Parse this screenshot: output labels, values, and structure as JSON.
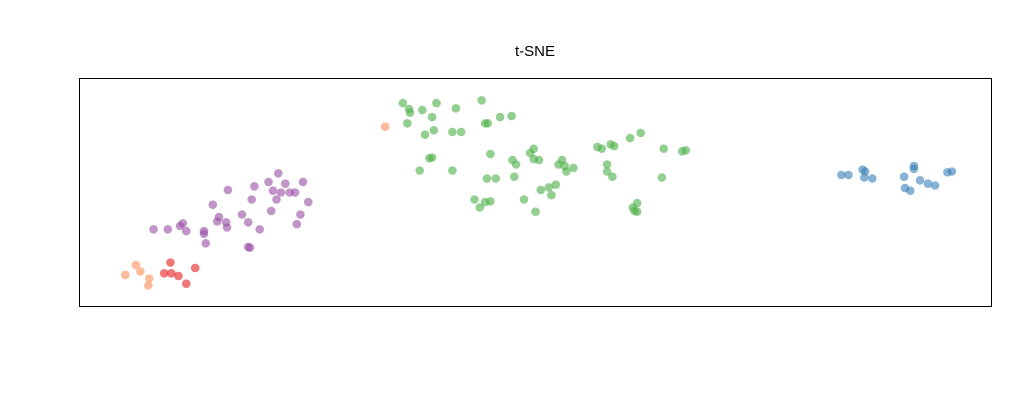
{
  "chart_data": {
    "type": "scatter",
    "title": "t-SNE",
    "xlabel": "",
    "ylabel": "",
    "axes_visible": false,
    "grid": false,
    "legend": "none",
    "xlim": [
      0,
      100
    ],
    "ylim": [
      0,
      100
    ],
    "point_opacity": 0.6,
    "series": [
      {
        "color": "#fc8d59",
        "points": [
          [
            3.6,
            8.8
          ],
          [
            4.8,
            13.8
          ],
          [
            5.3,
            10.5
          ],
          [
            6.3,
            7.0
          ],
          [
            6.2,
            3.5
          ],
          [
            33.0,
            82.9
          ]
        ]
      },
      {
        "color": "#e41a1c",
        "points": [
          [
            8.7,
            15.0
          ],
          [
            8.0,
            9.6
          ],
          [
            8.8,
            9.6
          ],
          [
            9.6,
            8.3
          ],
          [
            10.5,
            4.4
          ],
          [
            11.5,
            12.3
          ]
        ]
      },
      {
        "color": "#984ea3",
        "points": [
          [
            6.8,
            31.6
          ],
          [
            8.4,
            31.6
          ],
          [
            9.8,
            33.3
          ],
          [
            10.1,
            34.6
          ],
          [
            10.5,
            30.7
          ],
          [
            12.5,
            29.4
          ],
          [
            12.5,
            30.7
          ],
          [
            12.7,
            24.6
          ],
          [
            13.5,
            43.9
          ],
          [
            14.0,
            35.5
          ],
          [
            14.2,
            37.7
          ],
          [
            15.0,
            35.1
          ],
          [
            15.1,
            32.5
          ],
          [
            15.2,
            51.3
          ],
          [
            16.8,
            39.0
          ],
          [
            17.5,
            35.1
          ],
          [
            17.5,
            22.8
          ],
          [
            17.7,
            22.4
          ],
          [
            17.9,
            46.5
          ],
          [
            18.2,
            53.1
          ],
          [
            18.8,
            31.6
          ],
          [
            19.8,
            55.3
          ],
          [
            20.1,
            40.8
          ],
          [
            20.3,
            50.9
          ],
          [
            20.9,
            59.6
          ],
          [
            20.7,
            46.5
          ],
          [
            21.2,
            50.0
          ],
          [
            21.7,
            54.4
          ],
          [
            22.2,
            50.0
          ],
          [
            22.8,
            50.0
          ],
          [
            23.0,
            34.2
          ],
          [
            23.4,
            39.0
          ],
          [
            23.7,
            55.3
          ],
          [
            24.3,
            45.2
          ]
        ]
      },
      {
        "color": "#4daf4a",
        "points": [
          [
            35.0,
            94.7
          ],
          [
            35.7,
            91.7
          ],
          [
            35.8,
            89.9
          ],
          [
            35.5,
            84.6
          ],
          [
            37.2,
            91.2
          ],
          [
            38.8,
            94.7
          ],
          [
            38.3,
            87.7
          ],
          [
            38.5,
            81.1
          ],
          [
            37.5,
            78.9
          ],
          [
            40.6,
            80.3
          ],
          [
            41.0,
            92.1
          ],
          [
            41.6,
            80.3
          ],
          [
            43.9,
            96.1
          ],
          [
            44.3,
            84.6
          ],
          [
            44.6,
            84.6
          ],
          [
            46.0,
            87.7
          ],
          [
            47.3,
            88.2
          ],
          [
            36.9,
            61.0
          ],
          [
            38.0,
            67.1
          ],
          [
            38.3,
            67.5
          ],
          [
            40.6,
            61.0
          ],
          [
            43.7,
            42.5
          ],
          [
            43.1,
            46.5
          ],
          [
            44.3,
            45.2
          ],
          [
            44.9,
            45.6
          ],
          [
            44.5,
            57.0
          ],
          [
            45.5,
            57.0
          ],
          [
            44.9,
            69.3
          ],
          [
            47.6,
            57.9
          ],
          [
            47.8,
            64.0
          ],
          [
            47.4,
            66.2
          ],
          [
            48.7,
            46.5
          ],
          [
            49.4,
            69.7
          ],
          [
            49.8,
            71.9
          ],
          [
            49.8,
            66.7
          ],
          [
            50.4,
            66.2
          ],
          [
            50.6,
            51.3
          ],
          [
            50.0,
            40.4
          ],
          [
            51.5,
            52.6
          ],
          [
            52.3,
            53.9
          ],
          [
            51.8,
            48.7
          ],
          [
            52.6,
            64.0
          ],
          [
            53.3,
            63.2
          ],
          [
            53.0,
            66.2
          ],
          [
            53.5,
            60.5
          ],
          [
            54.3,
            62.3
          ],
          [
            57.0,
            72.8
          ],
          [
            57.5,
            71.9
          ],
          [
            58.1,
            64.0
          ],
          [
            58.1,
            60.5
          ],
          [
            58.5,
            74.1
          ],
          [
            58.9,
            73.2
          ],
          [
            58.7,
            57.9
          ],
          [
            60.7,
            77.2
          ],
          [
            61.0,
            42.5
          ],
          [
            61.5,
            44.7
          ],
          [
            61.2,
            40.8
          ],
          [
            61.5,
            40.4
          ],
          [
            61.9,
            79.8
          ],
          [
            64.5,
            71.9
          ],
          [
            64.3,
            57.5
          ],
          [
            66.6,
            70.6
          ],
          [
            67.0,
            71.1
          ]
        ]
      },
      {
        "color": "#377eb8",
        "points": [
          [
            84.6,
            58.8
          ],
          [
            85.4,
            58.8
          ],
          [
            87.0,
            61.4
          ],
          [
            87.3,
            60.5
          ],
          [
            87.2,
            57.5
          ],
          [
            88.1,
            57.0
          ],
          [
            91.7,
            57.9
          ],
          [
            91.8,
            52.2
          ],
          [
            92.4,
            50.9
          ],
          [
            92.8,
            63.2
          ],
          [
            92.8,
            61.8
          ],
          [
            93.5,
            56.1
          ],
          [
            94.4,
            54.4
          ],
          [
            95.2,
            53.5
          ],
          [
            96.6,
            60.1
          ],
          [
            97.1,
            60.5
          ]
        ]
      }
    ]
  }
}
